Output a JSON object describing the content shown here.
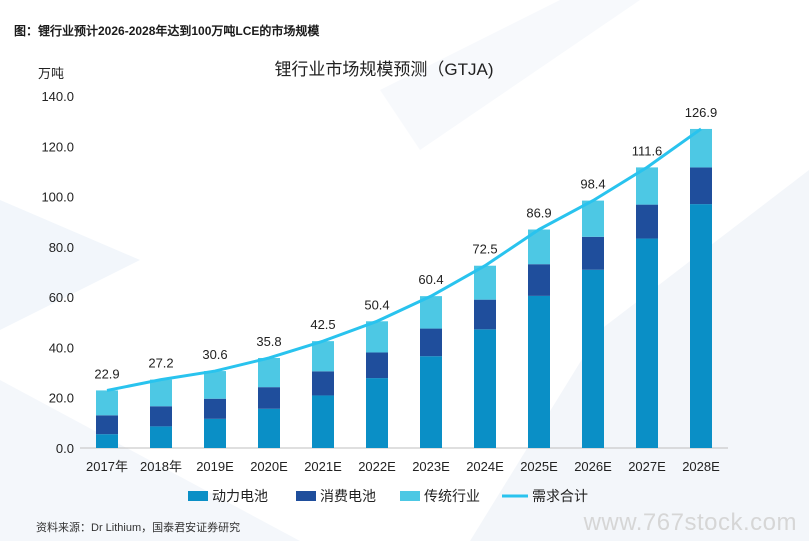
{
  "figure": {
    "title": "图：锂行业预计2026-2028年达到100万吨LCE的市场规模",
    "source": "资料来源：Dr Lithium，国泰君安证券研究",
    "watermark": "www.767stock.com"
  },
  "chart_data": {
    "type": "bar",
    "stacked": true,
    "title": "锂行业市场规模预测（GTJA)",
    "ylabel": "万吨",
    "xlabel": "",
    "ylim": [
      0,
      140
    ],
    "yticks": [
      "0.0",
      "20.0",
      "40.0",
      "60.0",
      "80.0",
      "100.0",
      "120.0",
      "140.0"
    ],
    "categories": [
      "2017年",
      "2018年",
      "2019E",
      "2020E",
      "2021E",
      "2022E",
      "2023E",
      "2024E",
      "2025E",
      "2026E",
      "2027E",
      "2028E"
    ],
    "series": [
      {
        "name": "动力电池",
        "kind": "bar",
        "color": "#0a8fc6",
        "values": [
          5.5,
          8.6,
          11.6,
          15.6,
          20.9,
          27.8,
          36.5,
          47.2,
          60.5,
          70.9,
          83.3,
          97.0
        ]
      },
      {
        "name": "消费电池",
        "kind": "bar",
        "color": "#1f4e9c",
        "values": [
          7.5,
          8.0,
          8.0,
          8.6,
          9.6,
          10.2,
          11.0,
          11.8,
          12.6,
          13.1,
          13.5,
          14.6
        ]
      },
      {
        "name": "传统行业",
        "kind": "bar",
        "color": "#4dc8e4",
        "values": [
          9.9,
          10.6,
          11.0,
          11.6,
          12.0,
          12.4,
          12.9,
          13.5,
          13.8,
          14.4,
          14.8,
          15.3
        ]
      },
      {
        "name": "需求合计",
        "kind": "line",
        "color": "#29c3ee",
        "values": [
          22.9,
          27.2,
          30.6,
          35.8,
          42.5,
          50.4,
          60.4,
          72.5,
          86.9,
          98.4,
          111.6,
          126.9
        ]
      }
    ],
    "total_labels": [
      "22.9",
      "27.2",
      "30.6",
      "35.8",
      "42.5",
      "50.4",
      "60.4",
      "72.5",
      "86.9",
      "98.4",
      "111.6",
      "126.9"
    ],
    "legend_position": "bottom",
    "grid": false
  }
}
